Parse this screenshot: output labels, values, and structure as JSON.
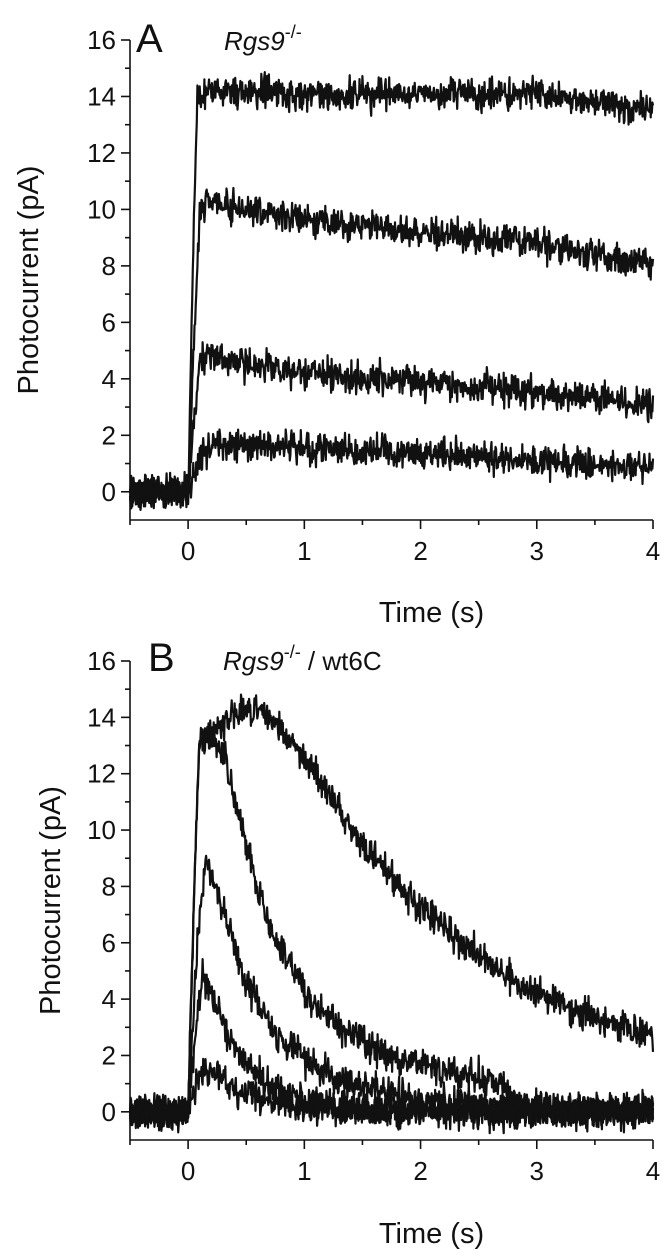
{
  "chart_data": [
    {
      "type": "line",
      "panel": "A",
      "annotation_italic": "Rgs9",
      "annotation_super": "-/-",
      "annotation_rest": "",
      "xlabel": "Time (s)",
      "ylabel": "Photocurrent (pA)",
      "xlim": [
        -0.5,
        4
      ],
      "ylim": [
        -1,
        16
      ],
      "xticks": [
        0,
        1,
        2,
        3,
        4
      ],
      "yticks": [
        0,
        2,
        4,
        6,
        8,
        10,
        12,
        14,
        16
      ],
      "grid": false,
      "series": [
        {
          "x": [
            -0.5,
            0,
            0.05,
            0.1,
            0.2,
            0.5,
            1,
            2,
            3,
            4
          ],
          "y": [
            0,
            0,
            0.5,
            1.3,
            1.7,
            1.6,
            1.55,
            1.4,
            1.1,
            0.8
          ]
        },
        {
          "x": [
            -0.5,
            0,
            0.05,
            0.1,
            0.15,
            0.5,
            1,
            2,
            3,
            4
          ],
          "y": [
            0,
            0,
            2.5,
            4.6,
            4.9,
            4.5,
            4.2,
            3.9,
            3.5,
            3.1
          ]
        },
        {
          "x": [
            -0.5,
            0,
            0.05,
            0.1,
            0.15,
            0.5,
            1,
            2,
            3,
            4
          ],
          "y": [
            0,
            0,
            5,
            9.8,
            10.3,
            10,
            9.6,
            9.2,
            8.8,
            8.0
          ]
        },
        {
          "x": [
            -0.5,
            0,
            0.04,
            0.08,
            0.5,
            1,
            2,
            3,
            4
          ],
          "y": [
            0,
            0,
            8,
            14.1,
            14.2,
            14.1,
            14.1,
            14.1,
            13.5
          ]
        }
      ]
    },
    {
      "type": "line",
      "panel": "B",
      "annotation_italic": "Rgs9",
      "annotation_super": "-/-",
      "annotation_rest": " / wt6C",
      "xlabel": "Time (s)",
      "ylabel": "Photocurrent (pA)",
      "xlim": [
        -0.5,
        4
      ],
      "ylim": [
        -1,
        16
      ],
      "xticks": [
        0,
        1,
        2,
        3,
        4
      ],
      "yticks": [
        0,
        2,
        4,
        6,
        8,
        10,
        12,
        14,
        16
      ],
      "grid": false,
      "series": [
        {
          "x": [
            -0.5,
            0,
            0.08,
            0.15,
            0.3,
            0.5,
            0.8,
            1.2,
            2,
            4
          ],
          "y": [
            0,
            0,
            1.1,
            1.5,
            1.1,
            0.6,
            0.3,
            0.1,
            0,
            0
          ]
        },
        {
          "x": [
            -0.5,
            0,
            0.08,
            0.12,
            0.2,
            0.4,
            0.7,
            1,
            1.5,
            2.5,
            4
          ],
          "y": [
            0,
            0,
            3.5,
            4.9,
            4.2,
            2.2,
            0.9,
            0.4,
            0.15,
            0,
            0
          ]
        },
        {
          "x": [
            -0.5,
            0,
            0.08,
            0.15,
            0.25,
            0.5,
            0.8,
            1,
            1.3,
            2,
            3,
            4
          ],
          "y": [
            0,
            0,
            6,
            8.9,
            7.8,
            4.6,
            2.6,
            1.8,
            1.1,
            0.4,
            0.1,
            0
          ]
        },
        {
          "x": [
            -0.5,
            0,
            0.06,
            0.1,
            0.2,
            0.3,
            0.5,
            0.7,
            1,
            1.3,
            1.7,
            2.2,
            2.75,
            2.8,
            3,
            4
          ],
          "y": [
            0,
            0,
            9,
            13.3,
            13.3,
            12.8,
            9.5,
            6.5,
            4.3,
            3,
            2,
            1.5,
            1.0,
            0.3,
            0.1,
            0
          ]
        },
        {
          "x": [
            -0.5,
            0,
            0.06,
            0.1,
            0.2,
            0.4,
            0.6,
            0.8,
            1,
            1.5,
            2,
            2.5,
            3,
            3.5,
            4
          ],
          "y": [
            0,
            0,
            9,
            13.2,
            13.4,
            14.1,
            14.3,
            13.6,
            12.5,
            9.5,
            7.2,
            5.5,
            4.2,
            3.3,
            2.6
          ]
        }
      ]
    }
  ]
}
